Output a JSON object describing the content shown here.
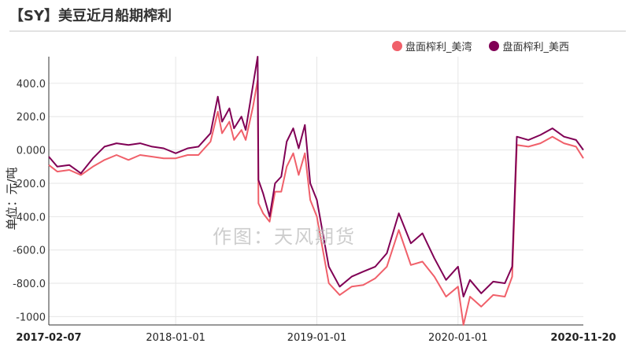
{
  "title": "【SY】美豆近月船期榨利",
  "watermark": "作图：天风期货",
  "colors": {
    "series1": "#f0606a",
    "series2": "#800055",
    "grid": "#e6e6e6",
    "axis": "#333333"
  },
  "chart_data": {
    "type": "line",
    "ylabel": "单位：元/吨",
    "ylim": [
      -1050,
      560
    ],
    "y_ticks": [
      400,
      200,
      0,
      -200,
      -400,
      -600,
      -800,
      -1000
    ],
    "y_tick_labels": [
      "400.0",
      "200.0",
      "0.000",
      "-200.0",
      "-400.0",
      "-600.0",
      "-800.0",
      "-1000"
    ],
    "x_range": [
      "2017-02-07",
      "2020-11-20"
    ],
    "x_ticks": [
      "2017-02-07",
      "2018-01-01",
      "2019-01-01",
      "2020-01-01",
      "2020-11-20"
    ],
    "legend_position": "top-right",
    "series": [
      {
        "name": "盘面榨利_美湾",
        "color": "#f0606a",
        "points": [
          [
            "2017-02-07",
            -90
          ],
          [
            "2017-03-01",
            -130
          ],
          [
            "2017-04-01",
            -120
          ],
          [
            "2017-05-01",
            -150
          ],
          [
            "2017-06-01",
            -100
          ],
          [
            "2017-07-01",
            -60
          ],
          [
            "2017-08-01",
            -30
          ],
          [
            "2017-09-01",
            -60
          ],
          [
            "2017-10-01",
            -30
          ],
          [
            "2017-11-01",
            -40
          ],
          [
            "2017-12-01",
            -50
          ],
          [
            "2018-01-01",
            -50
          ],
          [
            "2018-02-01",
            -30
          ],
          [
            "2018-03-01",
            -30
          ],
          [
            "2018-04-01",
            50
          ],
          [
            "2018-04-20",
            230
          ],
          [
            "2018-05-01",
            100
          ],
          [
            "2018-05-20",
            170
          ],
          [
            "2018-06-01",
            60
          ],
          [
            "2018-06-20",
            120
          ],
          [
            "2018-07-01",
            60
          ],
          [
            "2018-07-20",
            260
          ],
          [
            "2018-08-01",
            420
          ],
          [
            "2018-08-03",
            -320
          ],
          [
            "2018-08-15",
            -380
          ],
          [
            "2018-09-01",
            -430
          ],
          [
            "2018-09-15",
            -250
          ],
          [
            "2018-10-01",
            -250
          ],
          [
            "2018-10-15",
            -100
          ],
          [
            "2018-11-01",
            -20
          ],
          [
            "2018-11-15",
            -150
          ],
          [
            "2018-12-01",
            -20
          ],
          [
            "2018-12-15",
            -300
          ],
          [
            "2019-01-01",
            -400
          ],
          [
            "2019-02-01",
            -800
          ],
          [
            "2019-03-01",
            -870
          ],
          [
            "2019-04-01",
            -820
          ],
          [
            "2019-05-01",
            -810
          ],
          [
            "2019-06-01",
            -770
          ],
          [
            "2019-07-01",
            -700
          ],
          [
            "2019-08-01",
            -480
          ],
          [
            "2019-09-01",
            -690
          ],
          [
            "2019-10-01",
            -670
          ],
          [
            "2019-11-01",
            -760
          ],
          [
            "2019-12-01",
            -880
          ],
          [
            "2020-01-01",
            -820
          ],
          [
            "2020-01-15",
            -1050
          ],
          [
            "2020-02-01",
            -880
          ],
          [
            "2020-03-01",
            -940
          ],
          [
            "2020-04-01",
            -870
          ],
          [
            "2020-05-01",
            -880
          ],
          [
            "2020-05-20",
            -760
          ],
          [
            "2020-06-01",
            30
          ],
          [
            "2020-07-01",
            20
          ],
          [
            "2020-08-01",
            40
          ],
          [
            "2020-09-01",
            80
          ],
          [
            "2020-10-01",
            40
          ],
          [
            "2020-11-01",
            20
          ],
          [
            "2020-11-20",
            -50
          ]
        ]
      },
      {
        "name": "盘面榨利_美西",
        "color": "#800055",
        "points": [
          [
            "2017-02-07",
            -40
          ],
          [
            "2017-03-01",
            -100
          ],
          [
            "2017-04-01",
            -90
          ],
          [
            "2017-05-01",
            -140
          ],
          [
            "2017-06-01",
            -50
          ],
          [
            "2017-07-01",
            20
          ],
          [
            "2017-08-01",
            40
          ],
          [
            "2017-09-01",
            30
          ],
          [
            "2017-10-01",
            40
          ],
          [
            "2017-11-01",
            20
          ],
          [
            "2017-12-01",
            10
          ],
          [
            "2018-01-01",
            -20
          ],
          [
            "2018-02-01",
            10
          ],
          [
            "2018-03-01",
            20
          ],
          [
            "2018-04-01",
            100
          ],
          [
            "2018-04-20",
            320
          ],
          [
            "2018-05-01",
            170
          ],
          [
            "2018-05-20",
            250
          ],
          [
            "2018-06-01",
            130
          ],
          [
            "2018-06-20",
            200
          ],
          [
            "2018-07-01",
            120
          ],
          [
            "2018-07-20",
            390
          ],
          [
            "2018-08-01",
            560
          ],
          [
            "2018-08-03",
            -180
          ],
          [
            "2018-08-15",
            -260
          ],
          [
            "2018-09-01",
            -400
          ],
          [
            "2018-09-15",
            -200
          ],
          [
            "2018-10-01",
            -160
          ],
          [
            "2018-10-15",
            50
          ],
          [
            "2018-11-01",
            130
          ],
          [
            "2018-11-15",
            10
          ],
          [
            "2018-12-01",
            150
          ],
          [
            "2018-12-15",
            -200
          ],
          [
            "2019-01-01",
            -300
          ],
          [
            "2019-02-01",
            -700
          ],
          [
            "2019-03-01",
            -820
          ],
          [
            "2019-04-01",
            -760
          ],
          [
            "2019-05-01",
            -730
          ],
          [
            "2019-06-01",
            -700
          ],
          [
            "2019-07-01",
            -620
          ],
          [
            "2019-08-01",
            -380
          ],
          [
            "2019-09-01",
            -560
          ],
          [
            "2019-10-01",
            -500
          ],
          [
            "2019-11-01",
            -650
          ],
          [
            "2019-12-01",
            -780
          ],
          [
            "2020-01-01",
            -700
          ],
          [
            "2020-01-15",
            -880
          ],
          [
            "2020-02-01",
            -780
          ],
          [
            "2020-03-01",
            -860
          ],
          [
            "2020-04-01",
            -790
          ],
          [
            "2020-05-01",
            -800
          ],
          [
            "2020-05-20",
            -700
          ],
          [
            "2020-06-01",
            80
          ],
          [
            "2020-07-01",
            60
          ],
          [
            "2020-08-01",
            90
          ],
          [
            "2020-09-01",
            130
          ],
          [
            "2020-10-01",
            80
          ],
          [
            "2020-11-01",
            60
          ],
          [
            "2020-11-20",
            0
          ]
        ]
      }
    ]
  }
}
